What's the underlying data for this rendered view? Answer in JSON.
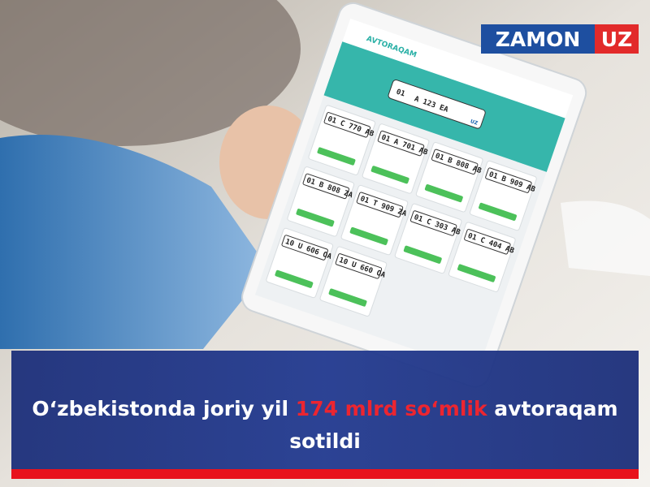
{
  "logo": {
    "name": "ZAMON",
    "suffix": "UZ"
  },
  "tablet": {
    "site_name": "AVTORAQAM",
    "main_plate": {
      "region": "01",
      "number": "A 123 EA",
      "country": "UZ"
    },
    "plates": [
      "01 C 770 AB",
      "01 A 701 AB",
      "01 B 808 AB",
      "01 B 909 AB",
      "01 B 808 ZA",
      "01 T 909 ZA",
      "01 C 303 AB",
      "01 C 404 AB",
      "10 U 606 OA",
      "10 U 660 OA"
    ]
  },
  "headline": {
    "line1": [
      "O‘zbekistonda joriy yil ",
      "174 mlrd so‘mlik",
      " avtoraqam"
    ],
    "line2": "sotildi"
  }
}
